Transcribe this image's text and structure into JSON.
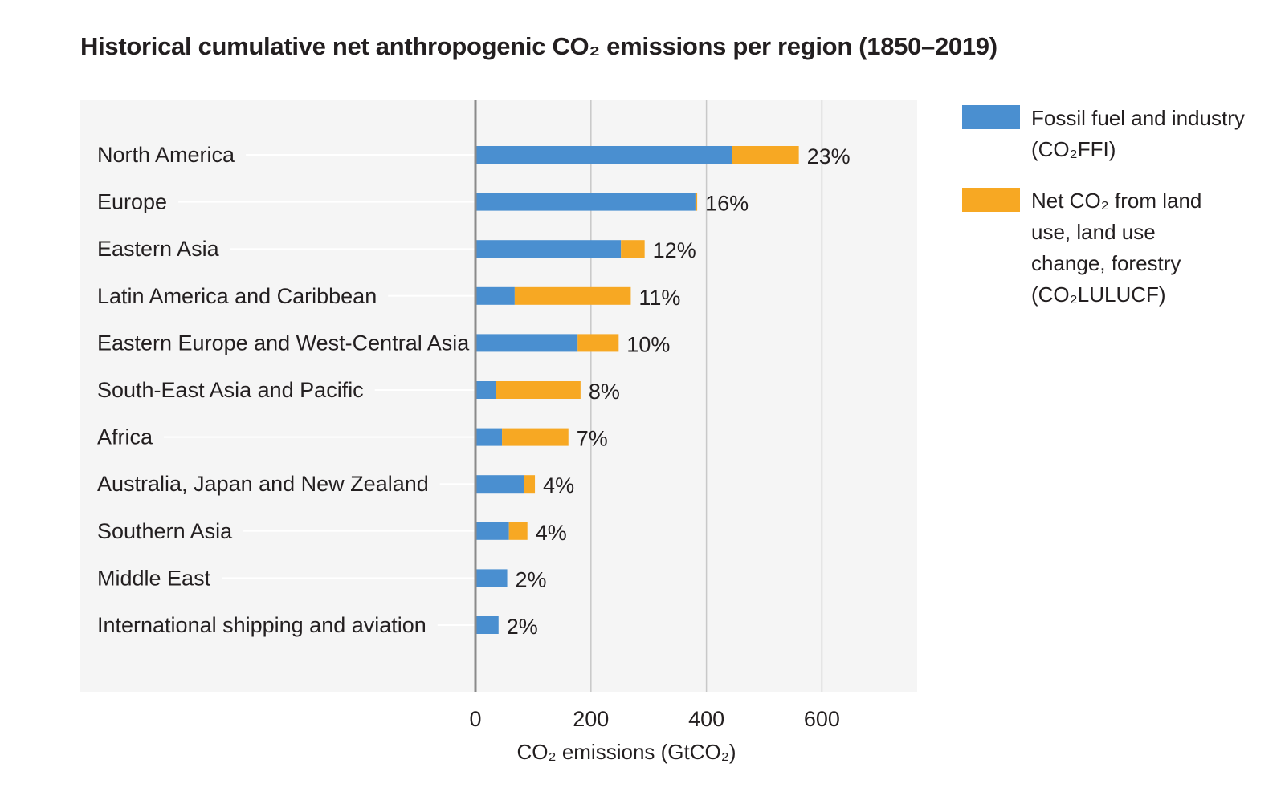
{
  "chart_data": {
    "type": "bar",
    "orientation": "horizontal",
    "stacked": true,
    "title": "Historical cumulative net anthropogenic CO₂ emissions per region (1850–2019)",
    "xlabel": "CO₂ emissions (GtCO₂)",
    "xlim": [
      0,
      770
    ],
    "x_ticks": [
      0,
      200,
      400,
      600
    ],
    "x_tick_labels": [
      "0",
      "200",
      "400",
      "600"
    ],
    "grid": "vertical",
    "legend_position": "right",
    "categories": [
      "North America",
      "Europe",
      "Eastern Asia",
      "Latin America and Caribbean",
      "Eastern Europe and West-Central Asia",
      "South-East Asia and Pacific",
      "Africa",
      "Australia, Japan and New Zealand",
      "Southern Asia",
      "Middle East",
      "International shipping and aviation"
    ],
    "series": [
      {
        "name": "Fossil fuel and industry\n(CO₂FFI)",
        "color": "#4a8fd0",
        "values": [
          445,
          381,
          252,
          68,
          177,
          36,
          46,
          84,
          58,
          55,
          40
        ]
      },
      {
        "name": "Net CO₂ from land\nuse, land use\nchange, forestry\n(CO₂LULUCF)",
        "color": "#f7a823",
        "values": [
          115,
          3,
          41,
          201,
          71,
          146,
          115,
          19,
          32,
          0,
          0
        ]
      }
    ],
    "data_labels": [
      "23%",
      "16%",
      "12%",
      "11%",
      "10%",
      "8%",
      "7%",
      "4%",
      "4%",
      "2%",
      "2%"
    ]
  }
}
